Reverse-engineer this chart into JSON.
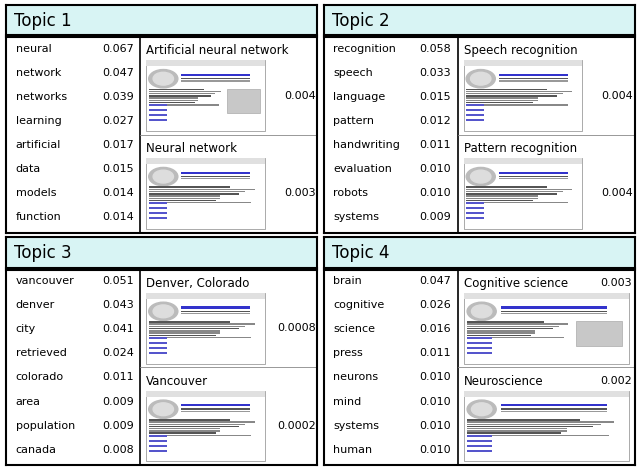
{
  "topics": [
    {
      "title": "Topic 1",
      "words": [
        [
          "neural",
          "0.067"
        ],
        [
          "network",
          "0.047"
        ],
        [
          "networks",
          "0.039"
        ],
        [
          "learning",
          "0.027"
        ],
        [
          "artificial",
          "0.017"
        ],
        [
          "data",
          "0.015"
        ],
        [
          "models",
          "0.014"
        ],
        [
          "function",
          "0.014"
        ]
      ],
      "articles": [
        {
          "title": "Artificial neural network",
          "prob": "0.004",
          "title_inline": false
        },
        {
          "title": "Neural network",
          "prob": "0.003",
          "title_inline": false
        }
      ]
    },
    {
      "title": "Topic 2",
      "words": [
        [
          "recognition",
          "0.058"
        ],
        [
          "speech",
          "0.033"
        ],
        [
          "language",
          "0.015"
        ],
        [
          "pattern",
          "0.012"
        ],
        [
          "handwriting",
          "0.011"
        ],
        [
          "evaluation",
          "0.010"
        ],
        [
          "robots",
          "0.010"
        ],
        [
          "systems",
          "0.009"
        ]
      ],
      "articles": [
        {
          "title": "Speech recognition",
          "prob": "0.004",
          "title_inline": false
        },
        {
          "title": "Pattern recognition",
          "prob": "0.004",
          "title_inline": false
        }
      ]
    },
    {
      "title": "Topic 3",
      "words": [
        [
          "vancouver",
          "0.051"
        ],
        [
          "denver",
          "0.043"
        ],
        [
          "city",
          "0.041"
        ],
        [
          "retrieved",
          "0.024"
        ],
        [
          "colorado",
          "0.011"
        ],
        [
          "area",
          "0.009"
        ],
        [
          "population",
          "0.009"
        ],
        [
          "canada",
          "0.008"
        ]
      ],
      "articles": [
        {
          "title": "Denver, Colorado",
          "prob": "0.0008",
          "title_inline": false
        },
        {
          "title": "Vancouver",
          "prob": "0.0002",
          "title_inline": false
        }
      ]
    },
    {
      "title": "Topic 4",
      "words": [
        [
          "brain",
          "0.047"
        ],
        [
          "cognitive",
          "0.026"
        ],
        [
          "science",
          "0.016"
        ],
        [
          "press",
          "0.011"
        ],
        [
          "neurons",
          "0.010"
        ],
        [
          "mind",
          "0.010"
        ],
        [
          "systems",
          "0.010"
        ],
        [
          "human",
          "0.010"
        ]
      ],
      "articles": [
        {
          "title": "Cognitive science",
          "prob": "0.003",
          "title_inline": true
        },
        {
          "title": "Neuroscience",
          "prob": "0.002",
          "title_inline": true
        }
      ]
    }
  ],
  "header_bg": "#d8f4f4",
  "word_fontsize": 8.0,
  "title_fontsize": 12,
  "article_title_fontsize": 8.5,
  "article_prob_fontsize": 8.0
}
